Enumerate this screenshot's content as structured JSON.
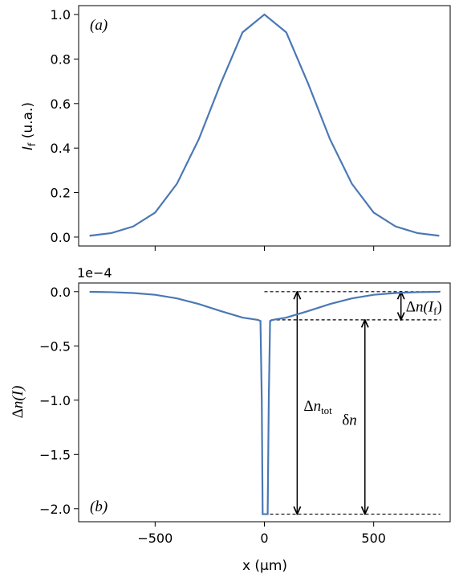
{
  "figure": {
    "xlabel": "x (μm)",
    "x_ticks": [
      -500,
      0,
      500
    ],
    "x_tick_labels": [
      "−500",
      "0",
      "500"
    ]
  },
  "chart_data": [
    {
      "type": "line",
      "panel_label": "(a)",
      "ylabel": {
        "main": "I",
        "sub": "f",
        "units": " (u.a.)"
      },
      "xlim": [
        -850,
        850
      ],
      "ylim": [
        -0.04,
        1.04
      ],
      "y_ticks": [
        0.0,
        0.2,
        0.4,
        0.6,
        0.8,
        1.0
      ],
      "y_tick_labels": [
        "0.0",
        "0.2",
        "0.4",
        "0.6",
        "0.8",
        "1.0"
      ],
      "grid": false,
      "color": "#4a78b5",
      "series": [
        {
          "x": [
            -800,
            -700,
            -600,
            -500,
            -400,
            -300,
            -200,
            -100,
            0,
            100,
            200,
            300,
            400,
            500,
            600,
            700,
            800
          ],
          "y": [
            0.006,
            0.018,
            0.048,
            0.11,
            0.24,
            0.44,
            0.69,
            0.92,
            1.0,
            0.92,
            0.69,
            0.44,
            0.24,
            0.11,
            0.048,
            0.018,
            0.006
          ]
        }
      ]
    },
    {
      "type": "line",
      "panel_label": "(b)",
      "ylabel": {
        "prefix": "Δ",
        "main": "n",
        "arg": "(I)"
      },
      "y_scale_label": "1e−4",
      "xlim": [
        -850,
        850
      ],
      "ylim": [
        -2.12,
        0.08
      ],
      "y_ticks": [
        0.0,
        -0.5,
        -1.0,
        -1.5,
        -2.0
      ],
      "y_tick_labels": [
        "0.0",
        "−0.5",
        "−1.0",
        "−1.5",
        "−2.0"
      ],
      "grid": false,
      "color": "#4a78b5",
      "series": [
        {
          "x": [
            -800,
            -700,
            -600,
            -500,
            -400,
            -300,
            -200,
            -100,
            -30,
            -18,
            -12,
            -8,
            15,
            20,
            26,
            38,
            100,
            200,
            300,
            400,
            500,
            600,
            700,
            800
          ],
          "y": [
            -0.0016,
            -0.0047,
            -0.0125,
            -0.0286,
            -0.0624,
            -0.114,
            -0.179,
            -0.239,
            -0.26,
            -0.27,
            -1.0,
            -2.05,
            -2.05,
            -1.0,
            -0.27,
            -0.26,
            -0.239,
            -0.179,
            -0.114,
            -0.0624,
            -0.0286,
            -0.0125,
            -0.0047,
            -0.0016
          ]
        }
      ],
      "annotations": {
        "upper_level": 0.0,
        "mid_level": -0.26,
        "lower_level": -2.05,
        "arrows": [
          {
            "label_prefix": "Δ",
            "label_main": "n",
            "label_sub": "tot",
            "x": 150,
            "from": 0.0,
            "to": -2.05
          },
          {
            "label_prefix": "δ",
            "label_main": "n",
            "x": 460,
            "from": -0.26,
            "to": -2.05
          },
          {
            "label_prefix": "Δ",
            "label_main": "n",
            "label_arg": "(I",
            "label_sub": "f",
            "label_close": ")",
            "x": 625,
            "from": 0.0,
            "to": -0.26
          }
        ]
      }
    }
  ]
}
